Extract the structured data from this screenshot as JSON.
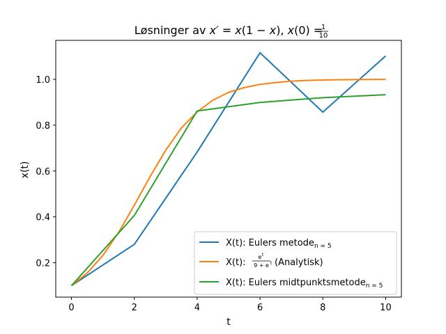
{
  "chart_data": {
    "type": "line",
    "title": "Løsninger av x′ = x(1 − x), x(0) = 1/10",
    "xlabel": "t",
    "ylabel": "x(t)",
    "xlim": [
      -0.5,
      10.5
    ],
    "ylim": [
      0.05,
      1.17
    ],
    "x_ticks": [
      0,
      2,
      4,
      6,
      8,
      10
    ],
    "y_ticks": [
      0.2,
      0.4,
      0.6,
      0.8,
      1.0
    ],
    "x_tick_labels": [
      "0",
      "2",
      "4",
      "6",
      "8",
      "10"
    ],
    "y_tick_labels": [
      "0.2",
      "0.4",
      "0.6",
      "0.8",
      "1.0"
    ],
    "grid": false,
    "legend_position": "lower-right",
    "series": [
      {
        "name": "X(t): Eulers metode",
        "name_subscript": "n=5",
        "color": "#1f77b4",
        "x": [
          0,
          2,
          4,
          6,
          8,
          10
        ],
        "y": [
          0.1,
          0.28,
          0.683,
          1.116,
          0.857,
          1.102
        ]
      },
      {
        "name": "X(t): e^t/(9+e^t) (Analytisk)",
        "color": "#ff7f0e",
        "x": [
          0,
          0.5,
          1,
          1.5,
          2,
          2.5,
          3,
          3.5,
          4,
          4.5,
          5,
          5.5,
          6,
          6.5,
          7,
          7.5,
          8,
          8.5,
          9,
          9.5,
          10
        ],
        "y": [
          0.1,
          0.155,
          0.232,
          0.332,
          0.451,
          0.575,
          0.691,
          0.788,
          0.858,
          0.909,
          0.943,
          0.964,
          0.978,
          0.986,
          0.992,
          0.995,
          0.997,
          0.998,
          0.999,
          0.9993,
          0.9996
        ]
      },
      {
        "name": "X(t): Eulers midtpunktsmetode",
        "name_subscript": "n=5",
        "color": "#2ca02c",
        "x": [
          0,
          2,
          4,
          6,
          8,
          10
        ],
        "y": [
          0.1,
          0.406,
          0.862,
          0.899,
          0.92,
          0.933
        ]
      }
    ]
  }
}
